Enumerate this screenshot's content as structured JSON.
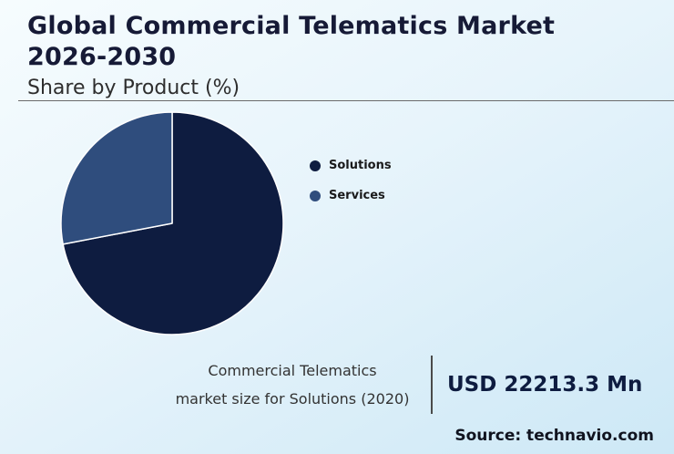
{
  "header": {
    "title_line1": "Global Commercial Telematics Market",
    "title_line2": "2026-2030",
    "subtitle": "Share by Product (%)"
  },
  "chart_data": {
    "type": "pie",
    "title": "Global Commercial Telematics Market 2026-2030 — Share by Product (%)",
    "unit": "%",
    "slices": [
      {
        "label": "Solutions",
        "value": 72,
        "color": "#0e1c40"
      },
      {
        "label": "Services",
        "value": 28,
        "color": "#2f4d7d"
      }
    ],
    "start_angle": "top",
    "direction": "clockwise",
    "legend_position": "right"
  },
  "footnote": {
    "label_line1": "Commercial Telematics",
    "label_line2": "market size for Solutions (2020)",
    "value": "USD 22213.3 Mn"
  },
  "source": "Source: technavio.com",
  "colors": {
    "title_text": "#161a36",
    "body_text": "#333333",
    "value_text": "#0e1c40",
    "background_top": "#f6fcfe",
    "background_bottom": "#cde8f6"
  }
}
